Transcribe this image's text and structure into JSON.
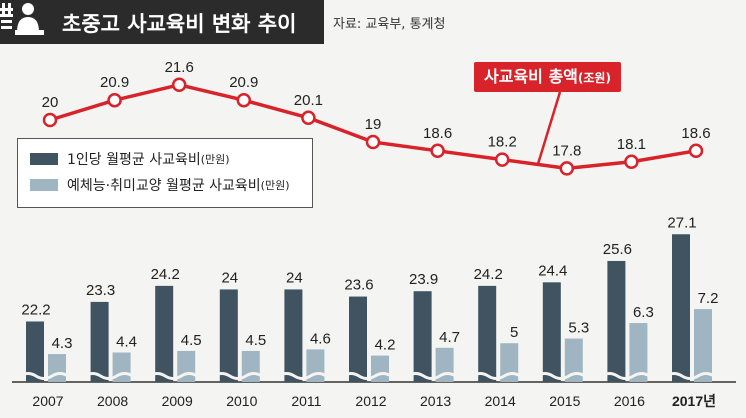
{
  "header": {
    "title": "초중고 사교육비 변화 추이",
    "source": "자료: 교육부, 통계청",
    "callout_main": "사교육비 총액",
    "callout_unit": "(조원)"
  },
  "legend": {
    "per_student": "1인당 월평균 사교육비",
    "per_student_unit": "(만원)",
    "arts": "예체능·취미교양 월평균 사교육비",
    "arts_unit": "(만원)"
  },
  "colors": {
    "line": "#d8232a",
    "bar_dark": "#3f5361",
    "bar_light": "#9fb5c1",
    "title_bg": "#2b2b2b"
  },
  "chart_data": {
    "type": "bar+line",
    "categories": [
      "2007",
      "2008",
      "2009",
      "2010",
      "2011",
      "2012",
      "2013",
      "2014",
      "2015",
      "2016",
      "2017년"
    ],
    "series": [
      {
        "name": "1인당 월평균 사교육비(만원)",
        "kind": "bar",
        "values": [
          22.2,
          23.3,
          24.2,
          24,
          24,
          23.6,
          23.9,
          24.2,
          24.4,
          25.6,
          27.1
        ]
      },
      {
        "name": "예체능·취미교양 월평균 사교육비(만원)",
        "kind": "bar",
        "values": [
          4.3,
          4.4,
          4.5,
          4.5,
          4.6,
          4.2,
          4.7,
          5,
          5.3,
          6.3,
          7.2
        ]
      },
      {
        "name": "사교육비 총액(조원)",
        "kind": "line",
        "values": [
          20,
          20.9,
          21.6,
          20.9,
          20.1,
          19,
          18.6,
          18.2,
          17.8,
          18.1,
          18.6
        ]
      }
    ],
    "value_labels": {
      "bars_dark": [
        "22.2",
        "23.3",
        "24.2",
        "24",
        "24",
        "23.6",
        "23.9",
        "24.2",
        "24.4",
        "25.6",
        "27.1"
      ],
      "bars_light": [
        "4.3",
        "4.4",
        "4.5",
        "4.5",
        "4.6",
        "4.2",
        "4.7",
        "5",
        "5.3",
        "6.3",
        "7.2"
      ],
      "line": [
        "20",
        "20.9",
        "21.6",
        "20.9",
        "20.1",
        "19",
        "18.6",
        "18.2",
        "17.8",
        "18.1",
        "18.6"
      ]
    },
    "bar_axis": "broken",
    "grid": false,
    "legend_position": "left"
  }
}
